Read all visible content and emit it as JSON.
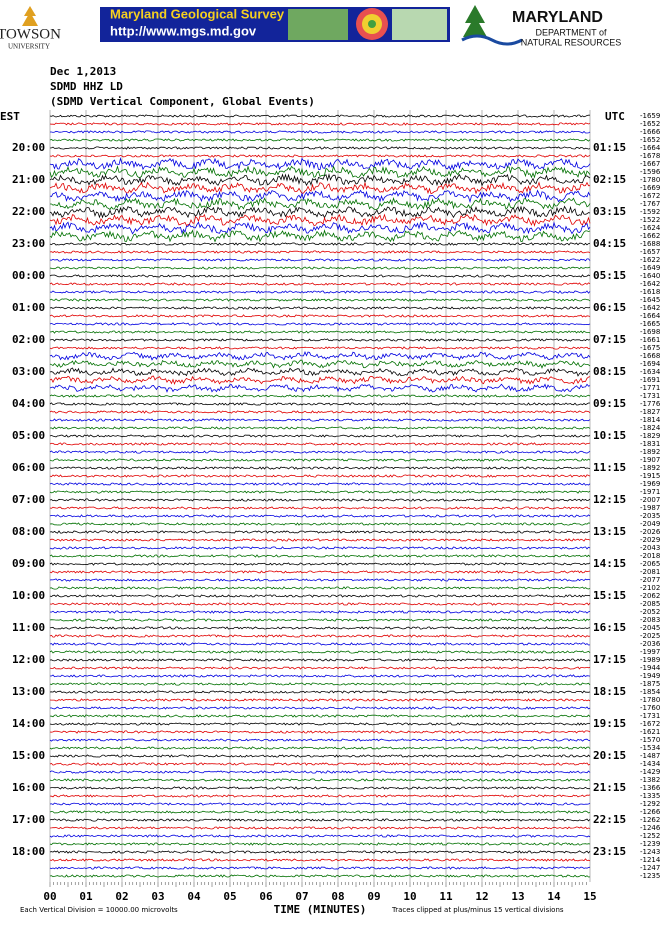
{
  "header": {
    "towson": "TOWSON",
    "towson_sub": "UNIVERSITY",
    "banner_title": "Maryland Geological Survey",
    "banner_url": "http://www.mgs.md.gov",
    "dnr_title": "MARYLAND",
    "dnr_sub1": "DEPARTMENT of",
    "dnr_sub2": "NATURAL RESOURCES"
  },
  "info": [
    "Dec 1,2013",
    "SDMD HHZ LD",
    "(SDMD Vertical Component, Global Events)"
  ],
  "plot": {
    "left_header": "EST",
    "right_header": "UTC",
    "hours": [
      "20:00",
      "21:00",
      "22:00",
      "23:00",
      "00:00",
      "01:00",
      "02:00",
      "03:00",
      "04:00",
      "05:00",
      "06:00",
      "07:00",
      "08:00",
      "09:00",
      "10:00",
      "11:00",
      "12:00",
      "13:00",
      "14:00",
      "15:00",
      "16:00",
      "17:00",
      "18:00"
    ],
    "utc": [
      "01:15",
      "02:15",
      "03:15",
      "04:15",
      "05:15",
      "06:15",
      "07:15",
      "08:15",
      "09:15",
      "10:15",
      "11:15",
      "12:15",
      "13:15",
      "14:15",
      "15:15",
      "16:15",
      "17:15",
      "18:15",
      "19:15",
      "20:15",
      "21:15",
      "22:15",
      "23:15"
    ],
    "offsets": [
      "-1659",
      "-1652",
      "-1666",
      "-1652",
      "-1664",
      "-1678",
      "-1667",
      "-1596",
      "-1780",
      "-1669",
      "-1672",
      "-1767",
      "-1592",
      "-1522",
      "-1624",
      "-1662",
      "-1688",
      "-1657",
      "-1622",
      "-1649",
      "-1640",
      "-1642",
      "-1618",
      "-1645",
      "-1642",
      "-1664",
      "-1665",
      "-1698",
      "-1661",
      "-1675",
      "-1668",
      "-1694",
      "-1634",
      "-1691",
      "-1771",
      "-1731",
      "-1776",
      "-1827",
      "-1814",
      "-1824",
      "-1829",
      "-1831",
      "-1892",
      "-1907",
      "-1892",
      "-1915",
      "-1969",
      "-1971",
      "-2007",
      "-1987",
      "-2035",
      "-2049",
      "-2026",
      "-2029",
      "-2043",
      "-2018",
      "-2065",
      "-2081",
      "-2077",
      "-2102",
      "-2062",
      "-2085",
      "-2052",
      "-2083",
      "-2045",
      "-2025",
      "-2036",
      "-1997",
      "-1989",
      "-1944",
      "-1949",
      "-1875",
      "-1854",
      "-1780",
      "-1760",
      "-1731",
      "-1672",
      "-1621",
      "-1570",
      "-1534",
      "-1487",
      "-1434",
      "-1429",
      "-1382",
      "-1366",
      "-1335",
      "-1292",
      "-1266",
      "-1262",
      "-1246",
      "-1252",
      "-1239",
      "-1243",
      "-1214",
      "-1247",
      "-1235"
    ],
    "trace_colors": [
      "#000000",
      "#e00000",
      "#0000e0",
      "#007000"
    ],
    "xlim": [
      0,
      15
    ],
    "xticks": [
      {
        "value": 0,
        "label": "00"
      },
      {
        "value": 1,
        "label": "01"
      },
      {
        "value": 2,
        "label": "02"
      },
      {
        "value": 3,
        "label": "03"
      },
      {
        "value": 4,
        "label": "04"
      },
      {
        "value": 5,
        "label": "05"
      },
      {
        "value": 6,
        "label": "06"
      },
      {
        "value": 7,
        "label": "07"
      },
      {
        "value": 8,
        "label": "08"
      },
      {
        "value": 9,
        "label": "09"
      },
      10,
      11,
      12,
      13,
      14,
      15
    ],
    "xlabel": "TIME (MINUTES)",
    "footer_left": "Each Vertical Division = 10000.00 microvolts",
    "footer_right": "Traces clipped at plus/minus 15 vertical divisions"
  }
}
